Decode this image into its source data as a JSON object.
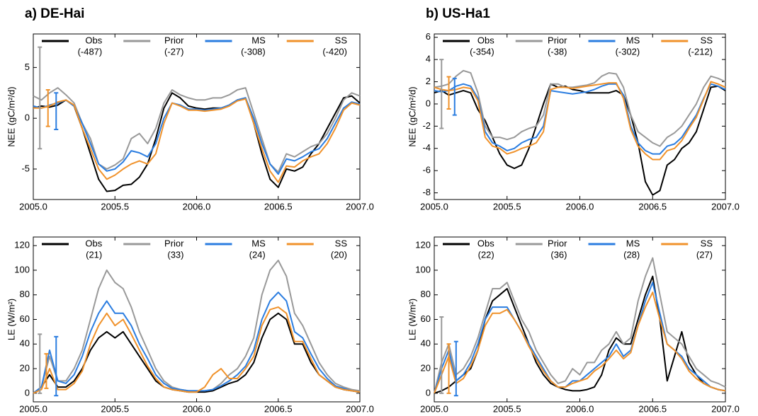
{
  "chart_data": [
    {
      "type": "line",
      "title": "a) DE-Hai",
      "ylabel": "NEE (gC/m²/d)",
      "legend": "top",
      "xlim": [
        2005,
        2007
      ],
      "xticks": [
        {
          "value": 2005,
          "label": "2005.0"
        },
        2005.5,
        {
          "value": 2006,
          "label": "2006.0"
        },
        2006.5,
        {
          "value": 2007,
          "label": "2007.0"
        }
      ],
      "ylim": [
        -8,
        8.3
      ],
      "yticks": [
        -5,
        0,
        5
      ],
      "x": [
        2005,
        2005.05,
        2005.1,
        2005.15,
        2005.2,
        2005.25,
        2005.3,
        2005.35,
        2005.4,
        2005.45,
        2005.5,
        2005.55,
        2005.6,
        2005.65,
        2005.7,
        2005.75,
        2005.8,
        2005.85,
        2005.9,
        2005.95,
        2006,
        2006.05,
        2006.1,
        2006.15,
        2006.2,
        2006.25,
        2006.3,
        2006.35,
        2006.4,
        2006.45,
        2006.5,
        2006.55,
        2006.6,
        2006.65,
        2006.7,
        2006.75,
        2006.8,
        2006.85,
        2006.9,
        2006.95,
        2007
      ],
      "series": [
        {
          "name": "Obs",
          "legend_note": "(-487)",
          "color": "#000000",
          "values": [
            1,
            1.2,
            1.1,
            1.3,
            1.8,
            1.2,
            -1,
            -3.5,
            -6,
            -7.2,
            -7.1,
            -6.6,
            -6.5,
            -5.8,
            -4.5,
            -2,
            1,
            2.5,
            2,
            1.2,
            1,
            0.9,
            1,
            1,
            1.3,
            1.8,
            2,
            -0.5,
            -3.5,
            -6,
            -6.8,
            -5,
            -5.2,
            -4.8,
            -3.5,
            -2.5,
            -1,
            0.5,
            2,
            2.2,
            1.5
          ]
        },
        {
          "name": "Prior",
          "legend_note": "(-27)",
          "color": "#999999",
          "values": [
            2.2,
            1.8,
            2.5,
            3,
            2.3,
            1.5,
            -0.5,
            -2,
            -4.5,
            -5,
            -4.6,
            -4,
            -2,
            -1.5,
            -2.5,
            -1,
            1.5,
            2.8,
            2.3,
            2,
            1.8,
            1.8,
            2,
            2,
            2.3,
            2.8,
            3,
            0.5,
            -2,
            -4.5,
            -5.3,
            -3.5,
            -3.8,
            -3.3,
            -2.8,
            -2.5,
            -1.5,
            0,
            1.8,
            2.5,
            2.2
          ]
        },
        {
          "name": "MS",
          "legend_note": "(-308)",
          "color": "#2b7de0",
          "values": [
            1.2,
            1,
            1.3,
            1.5,
            1.8,
            1.2,
            -0.5,
            -2.5,
            -4.5,
            -5.2,
            -5,
            -4.3,
            -3.2,
            -3.4,
            -3.8,
            -2.5,
            0,
            1.5,
            1.3,
            0.9,
            0.9,
            0.8,
            0.9,
            1,
            1.3,
            1.8,
            2,
            0,
            -2.5,
            -4.5,
            -5.5,
            -4,
            -4.2,
            -3.8,
            -3.3,
            -3,
            -2,
            -0.5,
            1,
            1.6,
            1.4
          ]
        },
        {
          "name": "SS",
          "legend_note": "(-420)",
          "color": "#f0922b",
          "values": [
            1,
            1,
            1.2,
            1.6,
            1.8,
            1.3,
            -1,
            -3,
            -5,
            -6,
            -5.6,
            -5,
            -4.5,
            -4.2,
            -4.5,
            -3.5,
            -0.5,
            1.5,
            1.2,
            0.8,
            0.8,
            0.7,
            0.8,
            0.9,
            1.2,
            1.7,
            1.9,
            -0.5,
            -3,
            -5.2,
            -6.3,
            -4.7,
            -4.8,
            -4.2,
            -3.8,
            -3.5,
            -2.5,
            -1,
            0.8,
            1.5,
            1.3
          ]
        }
      ],
      "error_bars": [
        {
          "x": 2005.04,
          "y": 2,
          "error": 5,
          "color": "#999999"
        },
        {
          "x": 2005.09,
          "y": 1,
          "error": 1.8,
          "color": "#f0922b"
        },
        {
          "x": 2005.14,
          "y": 0.7,
          "error": 1.8,
          "color": "#2b7de0"
        }
      ]
    },
    {
      "type": "line",
      "title": "b) US-Ha1",
      "ylabel": "NEE (gC/m²/d)",
      "legend": "top",
      "xlim": [
        2005,
        2007
      ],
      "xticks": [
        {
          "value": 2005,
          "label": "2005.0"
        },
        2005.5,
        {
          "value": 2006,
          "label": "2006.0"
        },
        2006.5,
        {
          "value": 2007,
          "label": "2007.0"
        }
      ],
      "ylim": [
        -8.6,
        6.3
      ],
      "yticks": [
        -8,
        -6,
        -4,
        -2,
        0,
        2,
        4,
        6
      ],
      "x": [
        2005,
        2005.05,
        2005.1,
        2005.15,
        2005.2,
        2005.25,
        2005.3,
        2005.35,
        2005.4,
        2005.45,
        2005.5,
        2005.55,
        2005.6,
        2005.65,
        2005.7,
        2005.75,
        2005.8,
        2005.85,
        2005.9,
        2005.95,
        2006,
        2006.05,
        2006.1,
        2006.15,
        2006.2,
        2006.25,
        2006.3,
        2006.35,
        2006.4,
        2006.45,
        2006.5,
        2006.55,
        2006.6,
        2006.65,
        2006.7,
        2006.75,
        2006.8,
        2006.85,
        2006.9,
        2006.95,
        2007
      ],
      "series": [
        {
          "name": "Obs",
          "legend_note": "(-354)",
          "color": "#000000",
          "values": [
            1,
            1.2,
            0.8,
            1,
            1.2,
            1,
            -0.5,
            -1.5,
            -3,
            -4.5,
            -5.5,
            -5.8,
            -5.5,
            -4,
            -2,
            0,
            1.8,
            1.5,
            1.6,
            1.3,
            1.2,
            1,
            1,
            1,
            1,
            1.2,
            0.8,
            -1,
            -3.5,
            -7,
            -8.2,
            -7.8,
            -5.5,
            -5,
            -4,
            -3.5,
            -2.5,
            -0.5,
            1.5,
            1.6,
            1.2
          ]
        },
        {
          "name": "Prior",
          "legend_note": "(-38)",
          "color": "#999999",
          "values": [
            1.5,
            1.6,
            1.8,
            2.5,
            3,
            2.8,
            1,
            -2,
            -3,
            -3,
            -3.2,
            -3,
            -2.5,
            -2.2,
            -2,
            -1,
            1.8,
            1.8,
            1.5,
            1.5,
            1.6,
            1.7,
            1.9,
            2.5,
            2.8,
            2.7,
            1.5,
            -1,
            -2.5,
            -3,
            -3.5,
            -3.8,
            -3,
            -2.6,
            -2,
            -1,
            0,
            1.5,
            2.5,
            2.3,
            2
          ]
        },
        {
          "name": "MS",
          "legend_note": "(-302)",
          "color": "#2b7de0",
          "values": [
            1.2,
            1.1,
            1.2,
            1.6,
            1.8,
            1.6,
            0.5,
            -2.5,
            -3.5,
            -3.8,
            -4.2,
            -4,
            -3.5,
            -3.2,
            -3,
            -2,
            1.2,
            1.1,
            1,
            0.9,
            1,
            1.1,
            1.3,
            1.6,
            1.8,
            1.8,
            0.8,
            -2,
            -3.5,
            -4.2,
            -4.5,
            -4.5,
            -3.8,
            -3.6,
            -3,
            -2,
            -1,
            0.5,
            1.8,
            1.6,
            1.3
          ]
        },
        {
          "name": "SS",
          "legend_note": "(-212)",
          "color": "#f0922b",
          "values": [
            1.5,
            1.3,
            1.2,
            1.3,
            1.5,
            1.4,
            0.3,
            -3,
            -3.8,
            -4,
            -4.5,
            -4.3,
            -4,
            -3.8,
            -3.5,
            -2.5,
            1.3,
            1.5,
            1.5,
            1.4,
            1.5,
            1.6,
            1.7,
            1.8,
            1.9,
            1.9,
            0.5,
            -2.3,
            -3.8,
            -4.5,
            -5,
            -5,
            -4.2,
            -4,
            -3.3,
            -2.2,
            -1.2,
            0.4,
            2,
            1.8,
            1.5
          ]
        }
      ],
      "error_bars": [
        {
          "x": 2005.05,
          "y": 0.9,
          "error": 3.1,
          "color": "#999999"
        },
        {
          "x": 2005.1,
          "y": 1,
          "error": 1.45,
          "color": "#f0922b"
        },
        {
          "x": 2005.14,
          "y": 0.65,
          "error": 1.65,
          "color": "#2b7de0"
        }
      ]
    },
    {
      "type": "line",
      "ylabel": "LE (W/m²)",
      "legend": "top",
      "xlim": [
        2005,
        2007
      ],
      "xticks": [
        {
          "value": 2005,
          "label": "2005.0"
        },
        2005.5,
        {
          "value": 2006,
          "label": "2006.0"
        },
        2006.5,
        {
          "value": 2007,
          "label": "2007.0"
        }
      ],
      "ylim": [
        -7,
        127
      ],
      "yticks": [
        0,
        20,
        40,
        60,
        80,
        100,
        120
      ],
      "x": [
        2005,
        2005.05,
        2005.1,
        2005.15,
        2005.2,
        2005.25,
        2005.3,
        2005.35,
        2005.4,
        2005.45,
        2005.5,
        2005.55,
        2005.6,
        2005.65,
        2005.7,
        2005.75,
        2005.8,
        2005.85,
        2005.9,
        2005.95,
        2006,
        2006.05,
        2006.1,
        2006.15,
        2006.2,
        2006.25,
        2006.3,
        2006.35,
        2006.4,
        2006.45,
        2006.5,
        2006.55,
        2006.6,
        2006.65,
        2006.7,
        2006.75,
        2006.8,
        2006.85,
        2006.9,
        2006.95,
        2007
      ],
      "series": [
        {
          "name": "Obs",
          "legend_note": "(21)",
          "color": "#000000",
          "values": [
            0,
            5,
            15,
            5,
            5,
            10,
            20,
            35,
            45,
            50,
            45,
            50,
            40,
            30,
            20,
            10,
            5,
            3,
            2,
            1,
            1,
            1,
            2,
            5,
            8,
            10,
            15,
            25,
            45,
            60,
            65,
            60,
            40,
            40,
            25,
            15,
            10,
            5,
            3,
            2,
            1
          ]
        },
        {
          "name": "Prior",
          "legend_note": "(33)",
          "color": "#999999",
          "values": [
            0,
            5,
            30,
            10,
            10,
            20,
            35,
            60,
            85,
            100,
            90,
            85,
            70,
            50,
            35,
            20,
            10,
            5,
            3,
            2,
            2,
            2,
            3,
            8,
            15,
            20,
            30,
            45,
            80,
            100,
            108,
            95,
            65,
            55,
            40,
            25,
            15,
            8,
            5,
            3,
            2
          ]
        },
        {
          "name": "MS",
          "legend_note": "(24)",
          "color": "#2b7de0",
          "values": [
            0,
            5,
            35,
            10,
            8,
            15,
            30,
            50,
            65,
            75,
            65,
            65,
            55,
            40,
            28,
            15,
            8,
            4,
            3,
            2,
            2,
            2,
            3,
            6,
            10,
            15,
            22,
            35,
            60,
            75,
            82,
            75,
            50,
            45,
            32,
            20,
            12,
            6,
            4,
            2,
            1
          ]
        },
        {
          "name": "SS",
          "legend_note": "(20)",
          "color": "#f0922b",
          "values": [
            0,
            3,
            20,
            3,
            3,
            8,
            18,
            40,
            55,
            65,
            55,
            60,
            48,
            35,
            22,
            12,
            5,
            3,
            2,
            1,
            1,
            5,
            15,
            20,
            12,
            12,
            20,
            30,
            55,
            68,
            70,
            65,
            42,
            42,
            28,
            15,
            10,
            5,
            3,
            2,
            1
          ]
        }
      ],
      "error_bars": [
        {
          "x": 2005.04,
          "y": 24,
          "error": 24,
          "color": "#999999"
        },
        {
          "x": 2005.08,
          "y": 18,
          "error": 14,
          "color": "#f0922b"
        },
        {
          "x": 2005.14,
          "y": 22,
          "error": 24,
          "color": "#2b7de0"
        }
      ]
    },
    {
      "type": "line",
      "ylabel": "LE (W/m²)",
      "legend": "top",
      "xlim": [
        2005,
        2007
      ],
      "xticks": [
        {
          "value": 2005,
          "label": "2005.0"
        },
        2005.5,
        {
          "value": 2006,
          "label": "2006.0"
        },
        2006.5,
        {
          "value": 2007,
          "label": "2007.0"
        }
      ],
      "ylim": [
        -7,
        127
      ],
      "yticks": [
        0,
        20,
        40,
        60,
        80,
        100,
        120
      ],
      "x": [
        2005,
        2005.05,
        2005.1,
        2005.15,
        2005.2,
        2005.25,
        2005.3,
        2005.35,
        2005.4,
        2005.45,
        2005.5,
        2005.55,
        2005.6,
        2005.65,
        2005.7,
        2005.75,
        2005.8,
        2005.85,
        2005.9,
        2005.95,
        2006,
        2006.05,
        2006.1,
        2006.15,
        2006.2,
        2006.25,
        2006.3,
        2006.35,
        2006.4,
        2006.45,
        2006.5,
        2006.55,
        2006.6,
        2006.65,
        2006.7,
        2006.75,
        2006.8,
        2006.85,
        2006.9,
        2006.95,
        2007
      ],
      "series": [
        {
          "name": "Obs",
          "legend_note": "(22)",
          "color": "#000000",
          "values": [
            0,
            2,
            5,
            10,
            15,
            20,
            35,
            60,
            75,
            80,
            85,
            70,
            55,
            40,
            25,
            15,
            8,
            5,
            3,
            2,
            2,
            3,
            5,
            15,
            35,
            45,
            40,
            40,
            60,
            80,
            95,
            60,
            10,
            30,
            50,
            25,
            15,
            8,
            5,
            3,
            2
          ]
        },
        {
          "name": "Prior",
          "legend_note": "(36)",
          "color": "#999999",
          "values": [
            0,
            25,
            40,
            15,
            20,
            30,
            45,
            65,
            85,
            85,
            90,
            75,
            60,
            50,
            35,
            25,
            15,
            8,
            10,
            20,
            15,
            25,
            25,
            35,
            40,
            50,
            40,
            45,
            75,
            95,
            110,
            80,
            50,
            45,
            40,
            30,
            20,
            15,
            10,
            8,
            5
          ]
        },
        {
          "name": "MS",
          "legend_note": "(28)",
          "color": "#2b7de0",
          "values": [
            0,
            20,
            35,
            10,
            15,
            25,
            40,
            60,
            70,
            70,
            70,
            60,
            50,
            40,
            30,
            20,
            10,
            5,
            5,
            10,
            10,
            15,
            20,
            25,
            30,
            40,
            30,
            35,
            55,
            75,
            90,
            65,
            40,
            35,
            30,
            20,
            15,
            10,
            5,
            3,
            2
          ]
        },
        {
          "name": "SS",
          "legend_note": "(27)",
          "color": "#f0922b",
          "values": [
            0,
            15,
            30,
            8,
            12,
            22,
            35,
            55,
            65,
            65,
            68,
            60,
            50,
            38,
            28,
            18,
            10,
            5,
            5,
            8,
            10,
            12,
            18,
            22,
            28,
            35,
            28,
            33,
            55,
            70,
            82,
            60,
            40,
            35,
            28,
            18,
            12,
            8,
            5,
            3,
            2
          ]
        }
      ],
      "error_bars": [
        {
          "x": 2005.05,
          "y": 31,
          "error": 31,
          "color": "#999999"
        },
        {
          "x": 2005.1,
          "y": 20,
          "error": 20,
          "color": "#f0922b"
        },
        {
          "x": 2005.15,
          "y": 20,
          "error": 22,
          "color": "#2b7de0"
        }
      ]
    }
  ]
}
